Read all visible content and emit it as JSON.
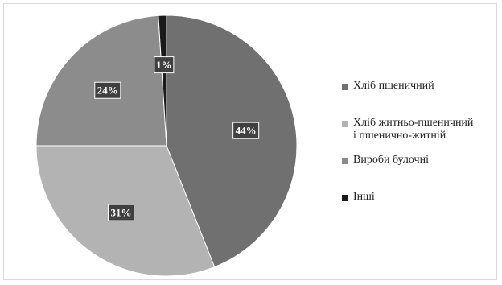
{
  "chart_data": {
    "type": "pie",
    "title": "",
    "slices": [
      {
        "label": "Хліб пшеничний",
        "value": 44,
        "display": "44%",
        "color": "#707070"
      },
      {
        "label": "Хліб житньо-пшеничний\nі пшенично-житній",
        "value": 31,
        "display": "31%",
        "color": "#b3b3b3"
      },
      {
        "label": "Вироби булочні",
        "value": 24,
        "display": "24%",
        "color": "#8c8c8c"
      },
      {
        "label": "Інші",
        "value": 1,
        "display": "1%",
        "color": "#1a1a1a"
      }
    ],
    "legend_position": "right"
  }
}
